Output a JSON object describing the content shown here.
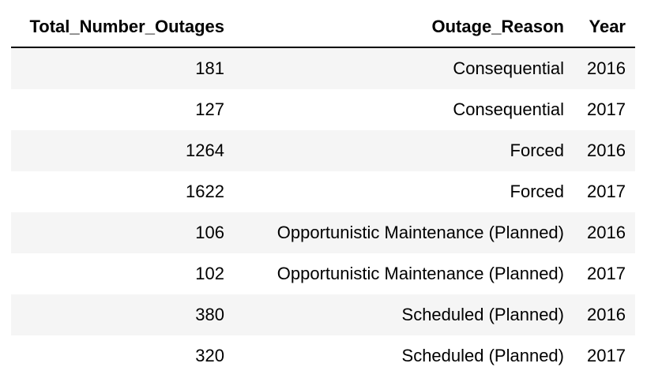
{
  "chart_data": {
    "type": "table",
    "columns": [
      "Total_Number_Outages",
      "Outage_Reason",
      "Year"
    ],
    "rows": [
      [
        "181",
        "Consequential",
        "2016"
      ],
      [
        "127",
        "Consequential",
        "2017"
      ],
      [
        "1264",
        "Forced",
        "2016"
      ],
      [
        "1622",
        "Forced",
        "2017"
      ],
      [
        "106",
        "Opportunistic Maintenance (Planned)",
        "2016"
      ],
      [
        "102",
        "Opportunistic Maintenance (Planned)",
        "2017"
      ],
      [
        "380",
        "Scheduled (Planned)",
        "2016"
      ],
      [
        "320",
        "Scheduled (Planned)",
        "2017"
      ]
    ],
    "colors": {
      "striped_row": "#f5f5f5",
      "header_rule": "#000000"
    }
  }
}
